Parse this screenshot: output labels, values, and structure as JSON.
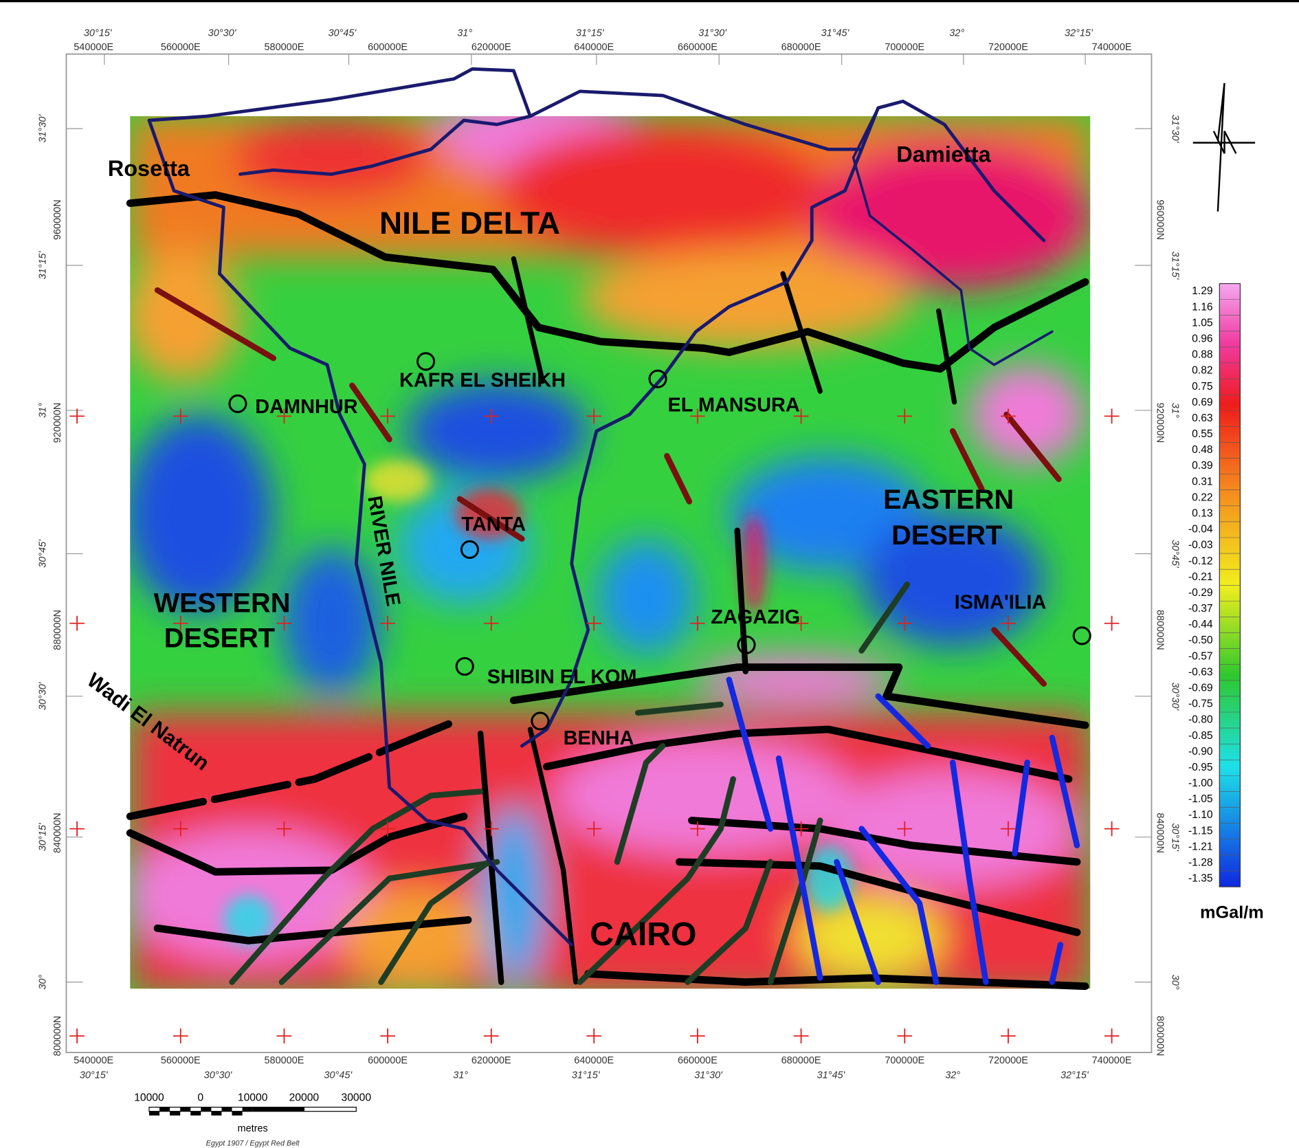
{
  "map": {
    "top_lon_labels": [
      "30°15'",
      "30°30'",
      "30°45'",
      "31°",
      "31°15'",
      "31°30'",
      "31°45'",
      "32°",
      "32°15'"
    ],
    "easting_labels": [
      "540000E",
      "560000E",
      "580000E",
      "600000E",
      "620000E",
      "640000E",
      "660000E",
      "680000E",
      "700000E",
      "720000E",
      "740000E"
    ],
    "lat_labels": [
      "31°30'",
      "31°15'",
      "31°",
      "30°45'",
      "30°30'",
      "30°15'",
      "30°"
    ],
    "northing_labels": [
      "960000N",
      "920000N",
      "880000N",
      "840000N",
      "800000N"
    ],
    "places": [
      "Rosetta",
      "Damietta",
      "NILE   DELTA",
      "KAFR EL SHEIKH",
      "DAMNHUR",
      "EL MANSURA",
      "RIVER NILE",
      "TANTA",
      "EASTERN",
      "DESERT",
      "WESTERN",
      "DESERT",
      "ZAGAZIG",
      "ISMA'ILIA",
      "SHIBIN EL KOM",
      "BENHA",
      "Wadi El Natrun",
      "CAIRO"
    ],
    "legend": {
      "values": [
        "1.29",
        "1.16",
        "1.05",
        "0.96",
        "0.88",
        "0.82",
        "0.75",
        "0.69",
        "0.63",
        "0.55",
        "0.48",
        "0.39",
        "0.31",
        "0.22",
        "0.13",
        "-0.04",
        "-0.03",
        "-0.12",
        "-0.21",
        "-0.29",
        "-0.37",
        "-0.44",
        "-0.50",
        "-0.57",
        "-0.63",
        "-0.69",
        "-0.75",
        "-0.80",
        "-0.85",
        "-0.90",
        "-0.95",
        "-1.00",
        "-1.05",
        "-1.10",
        "-1.15",
        "-1.21",
        "-1.28",
        "-1.35"
      ],
      "unit": "mGal/m"
    },
    "scale_bar": {
      "labels": [
        "10000",
        "0",
        "10000",
        "20000",
        "30000"
      ],
      "unit": "metres",
      "projection": "Egypt 1907 / Egypt Red Belt"
    }
  }
}
